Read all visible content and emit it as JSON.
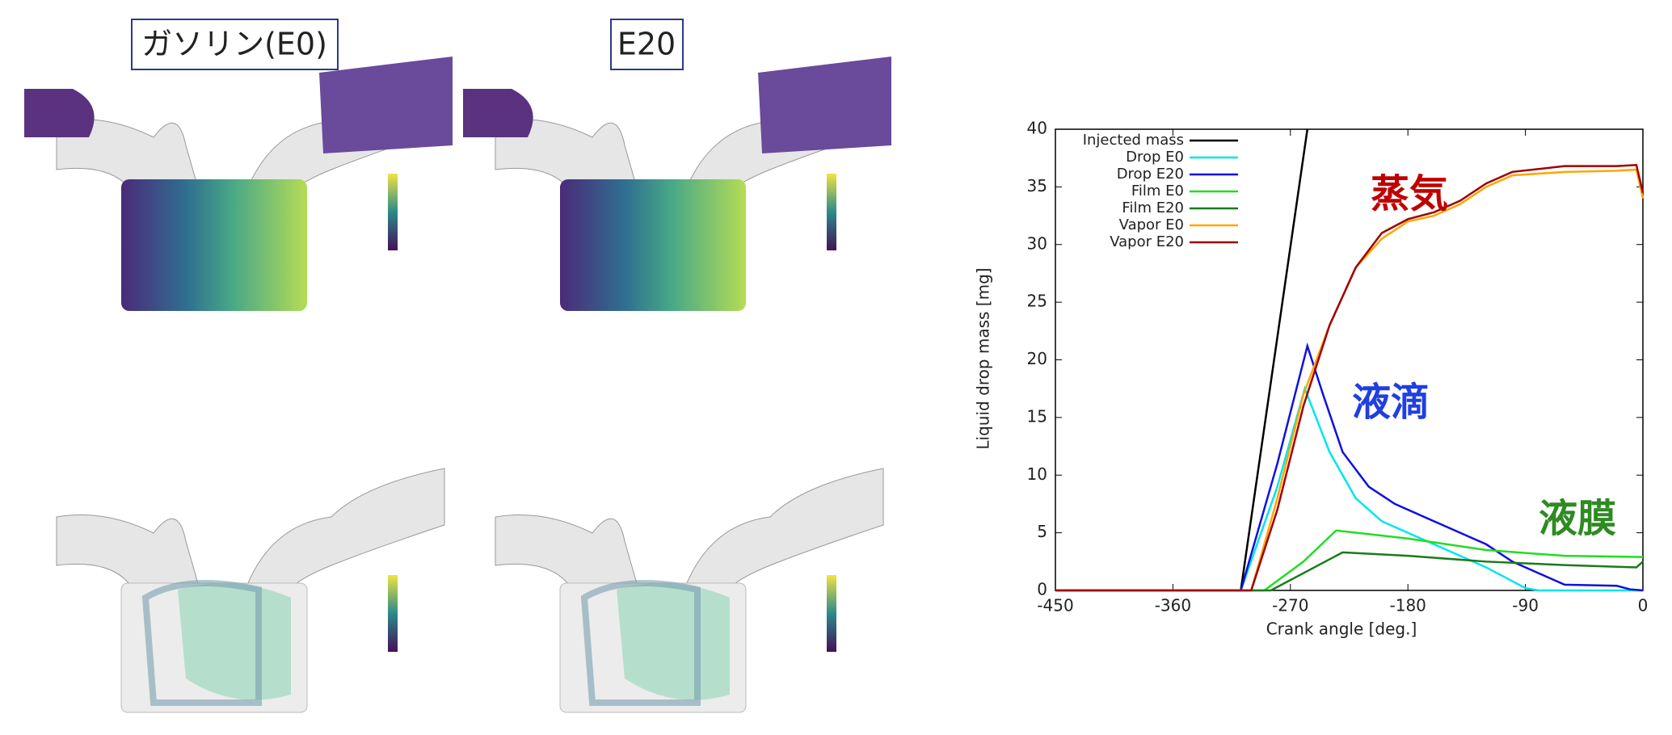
{
  "panels": {
    "labels": [
      "ガソリン(E0)",
      "E20"
    ]
  },
  "chart_data": {
    "type": "line",
    "xlabel": "Crank angle [deg.]",
    "ylabel": "Liquid drop mass [mg]",
    "xlim": [
      -450,
      0
    ],
    "xticks": [
      -450,
      -360,
      -270,
      -180,
      -90,
      0
    ],
    "ylim": [
      0,
      40
    ],
    "yticks": [
      0,
      5,
      10,
      15,
      20,
      25,
      30,
      35,
      40
    ],
    "grid": false,
    "legend": "upper left",
    "annotations": [
      {
        "text": "蒸気",
        "color": "#c00000"
      },
      {
        "text": "液滴",
        "color": "#1f3fe0"
      },
      {
        "text": "液膜",
        "color": "#2e8b22"
      }
    ],
    "series": [
      {
        "name": "Injected mass",
        "color": "#000000",
        "x": [
          -450,
          -308,
          -257
        ],
        "values": [
          0,
          0,
          40
        ]
      },
      {
        "name": "Drop E0",
        "color": "#00e5ee",
        "x": [
          -450,
          -308,
          -280,
          -259,
          -240,
          -220,
          -200,
          -180,
          -150,
          -120,
          -100,
          -90,
          -80,
          0
        ],
        "values": [
          0,
          0,
          9,
          17.5,
          12,
          8,
          6,
          5,
          3.5,
          2,
          0.8,
          0.2,
          0,
          0
        ]
      },
      {
        "name": "Drop E20",
        "color": "#1010e0",
        "x": [
          -450,
          -308,
          -280,
          -257,
          -245,
          -230,
          -210,
          -190,
          -170,
          -150,
          -120,
          -100,
          -80,
          -60,
          -20,
          -10,
          0
        ],
        "values": [
          0,
          0,
          11,
          21.2,
          17,
          12,
          9,
          7.5,
          6.5,
          5.5,
          4,
          2.5,
          1.5,
          0.5,
          0.4,
          0.1,
          0
        ]
      },
      {
        "name": "Film E0",
        "color": "#22dd22",
        "x": [
          -450,
          -290,
          -260,
          -235,
          -180,
          -120,
          -60,
          0
        ],
        "values": [
          0,
          0,
          2.5,
          5.2,
          4.5,
          3.5,
          3.0,
          2.9
        ]
      },
      {
        "name": "Film E20",
        "color": "#1a7a1a",
        "x": [
          -450,
          -285,
          -255,
          -230,
          -180,
          -120,
          -60,
          -5,
          0
        ],
        "values": [
          0,
          0,
          1.8,
          3.3,
          3.0,
          2.5,
          2.2,
          2.0,
          2.5
        ]
      },
      {
        "name": "Vapor E0",
        "color": "#ffa500",
        "x": [
          -450,
          -300,
          -280,
          -260,
          -240,
          -220,
          -200,
          -180,
          -160,
          -140,
          -120,
          -100,
          -60,
          -20,
          -5,
          0
        ],
        "values": [
          0,
          0,
          8,
          17,
          23,
          28,
          30.5,
          32,
          32.5,
          33.5,
          35,
          36,
          36.3,
          36.4,
          36.5,
          34
        ]
      },
      {
        "name": "Vapor E20",
        "color": "#a00000",
        "x": [
          -450,
          -300,
          -280,
          -260,
          -240,
          -220,
          -200,
          -180,
          -160,
          -140,
          -120,
          -100,
          -60,
          -20,
          -5,
          0
        ],
        "values": [
          0,
          0,
          7,
          16,
          23,
          28,
          31,
          32.2,
          32.8,
          33.8,
          35.3,
          36.3,
          36.8,
          36.8,
          36.9,
          34.5
        ]
      }
    ]
  }
}
